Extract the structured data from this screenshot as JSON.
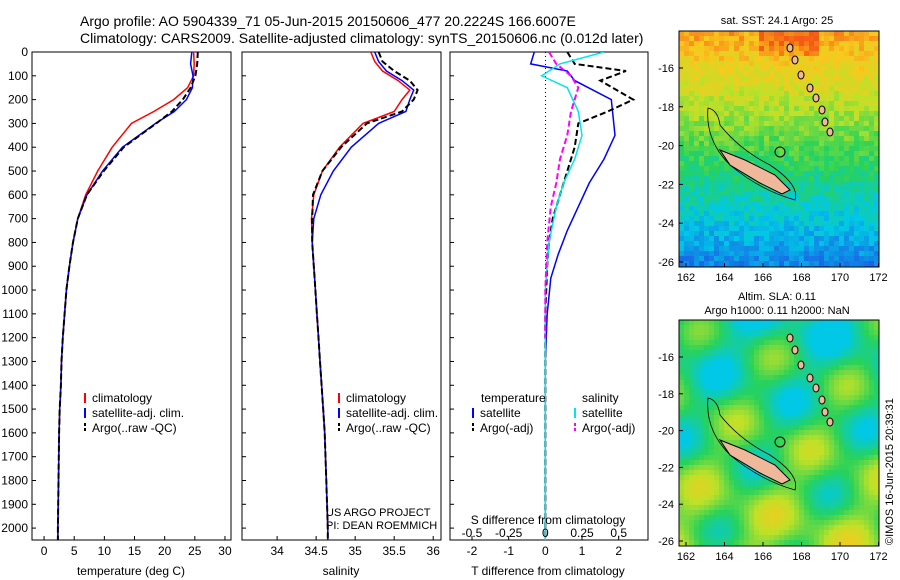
{
  "header": {
    "line1": "Argo profile: AO 5904339_71 05-Jun-2015 20150606_477 20.2224S 166.6007E",
    "line2": "Climatology: CARS2009. Satellite-adjusted climatology: synTS_20150606.nc (0.012d later)"
  },
  "depth_ticks": [
    0,
    100,
    200,
    300,
    400,
    500,
    600,
    700,
    800,
    900,
    1000,
    1100,
    1200,
    1300,
    1400,
    1500,
    1600,
    1700,
    1800,
    1900,
    2000
  ],
  "colors": {
    "climatology": "#ff0000",
    "satellite": "#0000ff",
    "argo": "#000000",
    "cyan": "#00e5ee",
    "magenta": "#ff00ff"
  },
  "chart_data": [
    {
      "type": "line",
      "id": "temperature",
      "xlabel": "temperature (deg C)",
      "ylabel": "",
      "xlim": [
        -2,
        31
      ],
      "ylim": [
        2050,
        0
      ],
      "xticks": [
        0,
        5,
        10,
        15,
        20,
        25,
        30
      ],
      "legend": [
        "climatology",
        "satellite-adj. clim.",
        "Argo(..raw -QC)"
      ],
      "series": [
        {
          "name": "climatology",
          "color": "#ff0000",
          "x": [
            24.8,
            24.9,
            24.8,
            23.8,
            21.5,
            18.2,
            14.5,
            11.3,
            8.9,
            6.9,
            5.6,
            4.8,
            4.2,
            3.7,
            3.4,
            3.1,
            2.9,
            2.8,
            2.6,
            2.5,
            2.4,
            2.3,
            2.3
          ],
          "y": [
            0,
            50,
            100,
            150,
            200,
            250,
            300,
            400,
            500,
            600,
            700,
            800,
            900,
            1000,
            1100,
            1200,
            1300,
            1400,
            1500,
            1600,
            1800,
            2000,
            2050
          ]
        },
        {
          "name": "satellite-adj. clim.",
          "color": "#0000ff",
          "x": [
            24.5,
            24.3,
            24.7,
            24.6,
            23.6,
            21.6,
            18.5,
            13.0,
            9.7,
            7.1,
            5.6,
            4.8,
            4.2,
            3.7,
            3.4,
            3.1,
            2.9,
            2.8,
            2.6,
            2.5,
            2.4,
            2.3,
            2.3
          ],
          "y": [
            0,
            50,
            100,
            150,
            200,
            250,
            300,
            400,
            500,
            600,
            700,
            800,
            900,
            1000,
            1100,
            1200,
            1300,
            1400,
            1500,
            1600,
            1800,
            2000,
            2050
          ]
        },
        {
          "name": "Argo(..raw -QC)",
          "color": "#000000",
          "x": [
            25.5,
            25.4,
            25.1,
            24.3,
            23.0,
            21.2,
            18.6,
            13.2,
            9.9,
            7.1,
            5.6,
            4.8,
            4.2,
            3.7,
            3.4,
            3.1,
            2.9,
            2.8,
            2.6,
            2.5,
            2.4,
            2.3,
            2.3
          ],
          "y": [
            0,
            50,
            100,
            150,
            200,
            250,
            300,
            400,
            500,
            600,
            700,
            800,
            900,
            1000,
            1100,
            1200,
            1300,
            1400,
            1500,
            1600,
            1800,
            2000,
            2050
          ]
        }
      ]
    },
    {
      "type": "line",
      "id": "salinity",
      "xlabel": "salinity",
      "ylabel": "",
      "xlim": [
        33.55,
        36.1
      ],
      "ylim": [
        2050,
        0
      ],
      "xticks": [
        34,
        34.5,
        35,
        35.5,
        36
      ],
      "legend": [
        "climatology",
        "satellite-adj. clim.",
        "Argo(..raw -QC)"
      ],
      "annotation": [
        "US ARGO PROJECT",
        "PI: DEAN ROEMMICH"
      ],
      "series": [
        {
          "name": "climatology",
          "color": "#ff0000",
          "x": [
            35.2,
            35.25,
            35.35,
            35.55,
            35.7,
            35.6,
            35.5,
            35.1,
            34.8,
            34.58,
            34.47,
            34.44,
            34.45,
            34.47,
            34.49,
            34.51,
            34.53,
            34.55,
            34.57,
            34.59,
            34.61,
            34.63,
            34.65,
            34.65
          ],
          "y": [
            0,
            40,
            80,
            120,
            160,
            200,
            250,
            300,
            400,
            500,
            600,
            700,
            800,
            900,
            1000,
            1100,
            1200,
            1300,
            1400,
            1500,
            1600,
            1800,
            2000,
            2050
          ]
        },
        {
          "name": "satellite-adj. clim.",
          "color": "#0000ff",
          "x": [
            35.25,
            35.3,
            35.4,
            35.6,
            35.75,
            35.7,
            35.65,
            35.3,
            34.95,
            34.72,
            34.56,
            34.47,
            34.45,
            34.47,
            34.49,
            34.51,
            34.53,
            34.55,
            34.57,
            34.59,
            34.61,
            34.63,
            34.65,
            34.65
          ],
          "y": [
            0,
            40,
            80,
            120,
            160,
            200,
            250,
            300,
            400,
            500,
            600,
            700,
            800,
            900,
            1000,
            1100,
            1200,
            1300,
            1400,
            1500,
            1600,
            1800,
            2000,
            2050
          ]
        },
        {
          "name": "Argo(..raw -QC)",
          "color": "#000000",
          "x": [
            35.3,
            35.35,
            35.5,
            35.7,
            35.8,
            35.75,
            35.6,
            35.15,
            34.82,
            34.58,
            34.46,
            34.45,
            34.45,
            34.47,
            34.49,
            34.51,
            34.53,
            34.55,
            34.57,
            34.59,
            34.61,
            34.63,
            34.65,
            34.65
          ],
          "y": [
            0,
            40,
            80,
            120,
            160,
            200,
            250,
            300,
            400,
            500,
            600,
            700,
            800,
            900,
            1000,
            1100,
            1200,
            1300,
            1400,
            1500,
            1600,
            1800,
            2000,
            2050
          ]
        }
      ]
    },
    {
      "type": "line",
      "id": "difference",
      "xlabel": "T difference from climatology",
      "xlabel_top": "S difference from climatology",
      "xlim": [
        -2.6,
        2.8
      ],
      "ylim": [
        2050,
        0
      ],
      "xticks": [
        -2,
        -1,
        0,
        1,
        2
      ],
      "xticks_s": [
        "-0.5",
        "-0.25",
        "0",
        "0.25",
        "0.5"
      ],
      "legend_temperature": {
        "header": "temperature",
        "items": [
          "satellite",
          "Argo(-adj)"
        ]
      },
      "legend_salinity": {
        "header": "salinity",
        "items": [
          "satellite",
          "Argo(-adj)"
        ]
      },
      "series": [
        {
          "name": "temperature satellite",
          "color": "#0000ff",
          "x": [
            -0.3,
            -0.4,
            0.6,
            0.8,
            1.8,
            1.9,
            1.6,
            1.2,
            0.9,
            0.6,
            0.35,
            0.15,
            0.05,
            0,
            0,
            0,
            0
          ],
          "y": [
            0,
            50,
            80,
            120,
            200,
            350,
            450,
            550,
            650,
            750,
            850,
            950,
            1100,
            1300,
            1500,
            1800,
            2050
          ]
        },
        {
          "name": "temperature Argo(-adj)",
          "color": "#000000",
          "x": [
            0.6,
            0.8,
            2.2,
            1.5,
            2.4,
            1.7,
            0.9,
            0.8,
            0.6,
            0.4,
            0.2,
            0.1,
            0.05,
            0,
            0,
            0,
            0
          ],
          "y": [
            0,
            50,
            80,
            120,
            200,
            250,
            300,
            400,
            500,
            600,
            700,
            800,
            900,
            1100,
            1400,
            1800,
            2050
          ]
        },
        {
          "name": "salinity satellite",
          "color": "#00e5ee",
          "x": [
            1.6,
            0.4,
            -0.1,
            0.6,
            0.9,
            1.0,
            0.8,
            0.5,
            0.3,
            0.1,
            0,
            0,
            0
          ],
          "y": [
            0,
            50,
            100,
            150,
            250,
            350,
            450,
            550,
            650,
            800,
            1000,
            1500,
            2050
          ]
        },
        {
          "name": "salinity Argo(-adj)",
          "color": "#ff00ff",
          "x": [
            0.1,
            0.3,
            0.7,
            0.9,
            0.7,
            0.6,
            0.4,
            0.3,
            0.15,
            0.05,
            0,
            0
          ],
          "y": [
            0,
            50,
            100,
            150,
            250,
            350,
            450,
            550,
            650,
            800,
            1000,
            1200
          ]
        }
      ]
    },
    {
      "type": "heatmap",
      "id": "sst-map",
      "title": "sat. SST: 24.1  Argo: 25",
      "xticks": [
        162,
        164,
        166,
        168,
        170,
        172
      ],
      "yticks": [
        -16,
        -18,
        -20,
        -22,
        -24,
        -26
      ]
    },
    {
      "type": "heatmap",
      "id": "sla-map",
      "title": [
        "Altim. SLA: 0.11",
        "Argo h1000: 0.11 h2000: NaN"
      ],
      "xticks": [
        162,
        164,
        166,
        168,
        170,
        172
      ],
      "yticks": [
        -16,
        -18,
        -20,
        -22,
        -24,
        -26
      ]
    }
  ],
  "side_label": "©IMOS 16-Jun-2015 20:39:31"
}
